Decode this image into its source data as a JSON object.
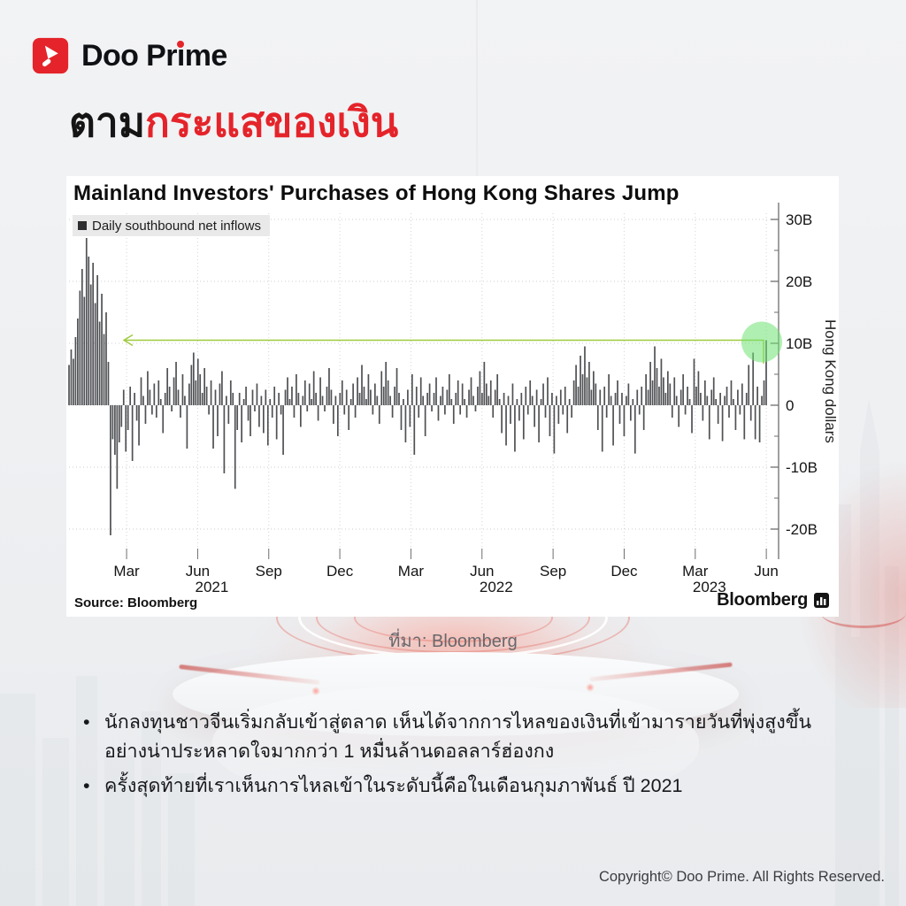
{
  "brand": {
    "logo_text": "Doo Prime",
    "copyright": "Copyright© Doo Prime. All Rights Reserved."
  },
  "title": {
    "black": "ตาม",
    "red": "กระแสของเงิน"
  },
  "caption": "ที่มา: Bloomberg",
  "bullets": [
    "นักลงทุนชาวจีนเริ่มกลับเข้าสู่ตลาด เห็นได้จากการไหลของเงินที่เข้ามารายวันที่พุ่งสูงขึ้นอย่างน่าประหลาดใจมากกว่า 1 หมื่นล้านดอลลาร์ฮ่องกง",
    "ครั้งสุดท้ายที่เราเห็นการไหลเข้าในระดับนี้คือในเดือนกุมภาพันธ์ ปี 2021"
  ],
  "colors": {
    "accent_red": "#e4242a",
    "bar": "#4f5154",
    "arrow_green": "#9fc93c",
    "highlight_green": "#70e273",
    "axis": "#6e6e6e",
    "grid": "#cccccc"
  },
  "chart_data": {
    "type": "bar",
    "title": "Mainland Investors' Purchases of Hong Kong Shares Jump",
    "legend": "Daily southbound net inflows",
    "ylabel": "Hong Kong dollars",
    "source": "Source: Bloomberg",
    "brand": "Bloomberg",
    "unit": "billions of Hong Kong dollars",
    "period": "Daily, Jan 2021 – Jun 2023",
    "ylim": [
      -25,
      31
    ],
    "grid": true,
    "yticks_b": [
      30,
      20,
      10,
      0,
      -10,
      -20
    ],
    "ytick_labels": [
      "30B",
      "20B",
      "10B",
      "0",
      "-10B",
      "-20B"
    ],
    "xticks": [
      {
        "label": "Mar",
        "year": ""
      },
      {
        "label": "Jun",
        "year": "2021"
      },
      {
        "label": "Sep",
        "year": ""
      },
      {
        "label": "Dec",
        "year": ""
      },
      {
        "label": "Mar",
        "year": ""
      },
      {
        "label": "Jun",
        "year": "2022"
      },
      {
        "label": "Sep",
        "year": ""
      },
      {
        "label": "Dec",
        "year": ""
      },
      {
        "label": "Mar",
        "year": "2023"
      },
      {
        "label": "Jun",
        "year": ""
      }
    ],
    "annotation_arrow_level": 10.5,
    "highlight_last_bar": true,
    "values": [
      6.5,
      9,
      7.5,
      11,
      14,
      18.5,
      22,
      17.5,
      27,
      24,
      19.5,
      23,
      16.5,
      21,
      13.5,
      18,
      11.5,
      15,
      7,
      -21,
      -5.5,
      -8,
      -13.5,
      -6,
      -3.5,
      2.5,
      -7.5,
      -4,
      3,
      -9,
      2,
      -2.5,
      -6.5,
      4.5,
      1.5,
      -3,
      5.5,
      2.5,
      -1.5,
      3.5,
      -2,
      4,
      1,
      -4.5,
      2,
      6,
      3,
      -1,
      4.5,
      7,
      2.5,
      -2,
      5,
      1.5,
      -7,
      3.5,
      6.5,
      8.5,
      4,
      7.5,
      5,
      2,
      6,
      3,
      -1.5,
      4,
      -7,
      2.5,
      -5,
      3.5,
      5.5,
      -11,
      1.5,
      -3,
      4,
      2,
      -13.5,
      -4,
      2,
      -6,
      1,
      3,
      -2.5,
      -5,
      2.5,
      -1,
      3.5,
      -3.5,
      1.5,
      -4.5,
      2.5,
      -6.5,
      1,
      -2,
      3,
      -5.5,
      2,
      -1.5,
      -8,
      2.5,
      4.5,
      1,
      3,
      -2,
      5,
      2,
      -3.5,
      1.5,
      4,
      -1,
      3.5,
      1,
      5.5,
      2,
      -2.5,
      4.5,
      1.5,
      -1,
      3,
      6,
      2.5,
      -3,
      1.5,
      -5,
      2,
      4,
      -1.5,
      2.5,
      -4,
      1,
      3.5,
      -2,
      4.5,
      2,
      6.5,
      3,
      1,
      5,
      2.5,
      -1.5,
      3.5,
      1.5,
      -3,
      5.5,
      3,
      7,
      4,
      1.5,
      -2,
      3,
      6,
      2,
      -4,
      1,
      -6,
      2.5,
      -3.5,
      5,
      -8,
      3,
      -2,
      4.5,
      1.5,
      -5,
      2,
      3.5,
      -1,
      2,
      4.5,
      -2.5,
      1.5,
      3,
      -1.5,
      2.5,
      5,
      1,
      -3,
      2,
      4,
      -1.5,
      3.5,
      1,
      -2,
      2.5,
      4.5,
      1.5,
      -1,
      3,
      5.5,
      2,
      7,
      3.5,
      1.5,
      4,
      -2,
      2.5,
      5,
      1,
      -4.5,
      2,
      -6.5,
      1.5,
      -3,
      3.5,
      -7.5,
      1,
      -2.5,
      2,
      -5.5,
      3,
      -1.5,
      4,
      1.5,
      -3.5,
      2.5,
      -6,
      1,
      3.5,
      -2,
      4.5,
      -5,
      2,
      -7.8,
      1.5,
      -3,
      2.5,
      -1.5,
      3,
      -4.5,
      1,
      -2,
      4,
      6.5,
      3,
      8,
      5,
      9.5,
      4.5,
      7,
      2.5,
      5.5,
      3.5,
      -4,
      2.5,
      -7.5,
      3,
      -2,
      5,
      1.5,
      -6.5,
      2,
      4,
      -3,
      2,
      -5,
      1.5,
      3.5,
      -2.5,
      1,
      -7.8,
      2.5,
      -1.5,
      3,
      -4,
      5,
      2.5,
      7,
      4,
      9.5,
      6,
      3,
      7.5,
      4.5,
      2,
      5.5,
      3.5,
      -2,
      4.5,
      1.5,
      -3.5,
      2.5,
      5,
      -1.5,
      3,
      1,
      -4.5,
      7.5,
      3,
      5.5,
      2,
      -2.5,
      4,
      1.5,
      -5.5,
      2.5,
      4.5,
      1,
      -3,
      2,
      -5.8,
      1.5,
      3,
      -2,
      4,
      1,
      -4,
      2.5,
      -1.5,
      3.5,
      -5.5,
      2,
      6.5,
      -2.5,
      8.5,
      -5.5,
      3,
      -6,
      1.5,
      4,
      10.5
    ]
  }
}
